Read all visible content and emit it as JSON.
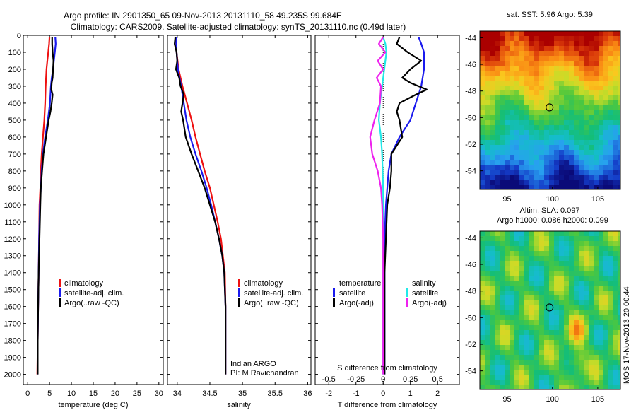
{
  "header": {
    "line1": "Argo profile: IN 2901350_65 09-Nov-2013 20131110_58 49.235S 99.684E",
    "line2": "Climatology: CARS2009. Satellite-adjusted climatology: synTS_20131110.nc (0.49d later)"
  },
  "colors": {
    "climatology": "#ee1111",
    "satellite": "#1a1aee",
    "argo": "#000000",
    "argo_salinity": "#ee22ee",
    "satellite_salinity": "#22e8e8"
  },
  "chart_data": [
    {
      "id": "temperature",
      "type": "line",
      "xlabel": "temperature (deg C)",
      "xlim": [
        -1,
        31
      ],
      "xticks": [
        0,
        5,
        10,
        15,
        20,
        25,
        30
      ],
      "ylim": [
        2060,
        0
      ],
      "yticks": [
        0,
        100,
        200,
        300,
        400,
        500,
        600,
        700,
        800,
        900,
        1000,
        1100,
        1200,
        1300,
        1400,
        1500,
        1600,
        1700,
        1800,
        1900,
        2000
      ],
      "legend": [
        "climatology",
        "satellite-adj. clim.",
        "Argo(..raw -QC)"
      ],
      "series": [
        {
          "name": "climatology",
          "color": "#ee1111",
          "points": [
            [
              5.0,
              10
            ],
            [
              4.9,
              50
            ],
            [
              4.7,
              100
            ],
            [
              4.5,
              150
            ],
            [
              4.3,
              200
            ],
            [
              4.1,
              300
            ],
            [
              4.0,
              400
            ],
            [
              3.8,
              500
            ],
            [
              3.5,
              600
            ],
            [
              3.2,
              700
            ],
            [
              3.0,
              800
            ],
            [
              2.9,
              900
            ],
            [
              2.7,
              1000
            ],
            [
              2.6,
              1200
            ],
            [
              2.5,
              1400
            ],
            [
              2.4,
              1600
            ],
            [
              2.3,
              1800
            ],
            [
              2.2,
              2000
            ]
          ]
        },
        {
          "name": "satellite-adj. clim.",
          "color": "#1a1aee",
          "points": [
            [
              6.3,
              10
            ],
            [
              6.4,
              50
            ],
            [
              6.2,
              100
            ],
            [
              6.0,
              150
            ],
            [
              5.8,
              200
            ],
            [
              5.5,
              250
            ],
            [
              5.3,
              300
            ],
            [
              5.1,
              400
            ],
            [
              4.6,
              500
            ],
            [
              4.0,
              600
            ],
            [
              3.5,
              700
            ],
            [
              3.2,
              800
            ],
            [
              3.0,
              900
            ],
            [
              2.8,
              1000
            ],
            [
              2.6,
              1200
            ],
            [
              2.5,
              1400
            ],
            [
              2.4,
              1600
            ],
            [
              2.3,
              1800
            ],
            [
              2.3,
              2000
            ]
          ]
        },
        {
          "name": "Argo(..raw -QC)",
          "color": "#000000",
          "points": [
            [
              5.6,
              10
            ],
            [
              5.6,
              50
            ],
            [
              5.7,
              100
            ],
            [
              5.9,
              150
            ],
            [
              5.8,
              200
            ],
            [
              5.7,
              250
            ],
            [
              5.5,
              280
            ],
            [
              5.4,
              320
            ],
            [
              5.7,
              350
            ],
            [
              5.5,
              400
            ],
            [
              5.2,
              450
            ],
            [
              4.8,
              500
            ],
            [
              4.2,
              600
            ],
            [
              3.6,
              700
            ],
            [
              3.3,
              800
            ],
            [
              3.0,
              900
            ],
            [
              2.9,
              1000
            ],
            [
              2.7,
              1200
            ],
            [
              2.5,
              1400
            ],
            [
              2.4,
              1600
            ],
            [
              2.3,
              1800
            ],
            [
              2.3,
              2000
            ]
          ]
        }
      ]
    },
    {
      "id": "salinity",
      "type": "line",
      "xlabel": "salinity",
      "xlim": [
        33.85,
        36.05
      ],
      "xticks": [
        34,
        34.5,
        35,
        35.5,
        36
      ],
      "ylim": [
        2060,
        0
      ],
      "legend": [
        "climatology",
        "satellite-adj. clim.",
        "Argo(..raw -QC)"
      ],
      "annotation_line1": "Indian ARGO",
      "annotation_line2": "PI: M Ravichandran",
      "series": [
        {
          "name": "climatology",
          "color": "#ee1111",
          "points": [
            [
              33.98,
              10
            ],
            [
              33.99,
              100
            ],
            [
              34.02,
              200
            ],
            [
              34.08,
              300
            ],
            [
              34.15,
              400
            ],
            [
              34.22,
              500
            ],
            [
              34.28,
              600
            ],
            [
              34.35,
              700
            ],
            [
              34.42,
              800
            ],
            [
              34.5,
              900
            ],
            [
              34.56,
              1000
            ],
            [
              34.62,
              1100
            ],
            [
              34.67,
              1200
            ],
            [
              34.7,
              1300
            ],
            [
              34.73,
              1400
            ],
            [
              34.74,
              1600
            ],
            [
              34.74,
              1800
            ],
            [
              34.74,
              2000
            ]
          ]
        },
        {
          "name": "satellite-adj. clim.",
          "color": "#1a1aee",
          "points": [
            [
              33.98,
              10
            ],
            [
              33.99,
              100
            ],
            [
              34.01,
              200
            ],
            [
              34.06,
              300
            ],
            [
              34.1,
              400
            ],
            [
              34.14,
              500
            ],
            [
              34.2,
              600
            ],
            [
              34.28,
              700
            ],
            [
              34.37,
              800
            ],
            [
              34.45,
              900
            ],
            [
              34.52,
              1000
            ],
            [
              34.58,
              1100
            ],
            [
              34.64,
              1200
            ],
            [
              34.69,
              1300
            ],
            [
              34.72,
              1400
            ],
            [
              34.74,
              1600
            ],
            [
              34.74,
              1800
            ],
            [
              34.74,
              2000
            ]
          ]
        },
        {
          "name": "Argo(..raw -QC)",
          "color": "#000000",
          "points": [
            [
              33.97,
              10
            ],
            [
              33.96,
              50
            ],
            [
              33.99,
              100
            ],
            [
              34.0,
              150
            ],
            [
              33.98,
              200
            ],
            [
              34.03,
              250
            ],
            [
              34.05,
              300
            ],
            [
              34.1,
              350
            ],
            [
              34.08,
              400
            ],
            [
              34.06,
              450
            ],
            [
              34.09,
              500
            ],
            [
              34.13,
              600
            ],
            [
              34.22,
              700
            ],
            [
              34.32,
              800
            ],
            [
              34.42,
              900
            ],
            [
              34.5,
              1000
            ],
            [
              34.58,
              1100
            ],
            [
              34.64,
              1200
            ],
            [
              34.69,
              1300
            ],
            [
              34.72,
              1400
            ],
            [
              34.74,
              1600
            ],
            [
              34.74,
              1800
            ],
            [
              34.74,
              2000
            ]
          ]
        }
      ]
    },
    {
      "id": "differences",
      "type": "line",
      "xlabel": "T difference from climatology",
      "xlabel_top": "S difference from climatology",
      "xlim": [
        -2.5,
        2.8
      ],
      "xticks": [
        -2,
        -1,
        0,
        1,
        2
      ],
      "xticks_top": [
        -0.5,
        -0.25,
        0,
        0.25,
        0.5
      ],
      "xticks_top_labels": [
        "-0.5",
        "-0.25",
        "0",
        "0.25",
        "0.5"
      ],
      "ylim": [
        2060,
        0
      ],
      "legend_temperature_title": "temperature",
      "legend_salinity_title": "salinity",
      "legend": [
        "satellite",
        "Argo(-adj)",
        "satellite",
        "Argo(-adj)"
      ],
      "series": [
        {
          "name": "satellite",
          "color": "#1a1aee",
          "points": [
            [
              1.3,
              10
            ],
            [
              1.4,
              50
            ],
            [
              1.5,
              100
            ],
            [
              1.5,
              200
            ],
            [
              1.4,
              300
            ],
            [
              1.2,
              400
            ],
            [
              1.0,
              500
            ],
            [
              0.6,
              600
            ],
            [
              0.3,
              700
            ],
            [
              0.2,
              800
            ],
            [
              0.15,
              900
            ],
            [
              0.1,
              1000
            ],
            [
              0.05,
              1200
            ],
            [
              0.05,
              1400
            ],
            [
              0.05,
              1600
            ],
            [
              0.05,
              1800
            ],
            [
              0.05,
              2000
            ]
          ]
        },
        {
          "name": "Argo(-adj)",
          "color": "#000000",
          "points": [
            [
              0.6,
              10
            ],
            [
              0.5,
              50
            ],
            [
              0.9,
              100
            ],
            [
              1.4,
              150
            ],
            [
              1.0,
              200
            ],
            [
              0.7,
              250
            ],
            [
              1.0,
              280
            ],
            [
              1.6,
              320
            ],
            [
              1.2,
              350
            ],
            [
              0.6,
              400
            ],
            [
              0.5,
              450
            ],
            [
              0.6,
              500
            ],
            [
              0.7,
              600
            ],
            [
              0.3,
              700
            ],
            [
              0.3,
              800
            ],
            [
              0.25,
              900
            ],
            [
              0.15,
              1000
            ],
            [
              0.1,
              1200
            ],
            [
              0.05,
              1400
            ],
            [
              0.05,
              1600
            ],
            [
              0.05,
              1800
            ],
            [
              0.05,
              2000
            ]
          ]
        },
        {
          "name": "satellite",
          "color": "#22e8e8",
          "points": [
            [
              0.0,
              10
            ],
            [
              0.02,
              50
            ],
            [
              0.03,
              100
            ],
            [
              0.01,
              200
            ],
            [
              -0.01,
              300
            ],
            [
              -0.03,
              400
            ],
            [
              -0.04,
              500
            ],
            [
              -0.02,
              600
            ],
            [
              -0.01,
              700
            ],
            [
              0.0,
              900
            ],
            [
              0.0,
              1200
            ],
            [
              0.0,
              1600
            ],
            [
              0.0,
              2000
            ]
          ]
        },
        {
          "name": "Argo(-adj)",
          "color": "#ee22ee",
          "points": [
            [
              0.0,
              10
            ],
            [
              -0.04,
              50
            ],
            [
              0.02,
              100
            ],
            [
              -0.05,
              150
            ],
            [
              0.0,
              200
            ],
            [
              -0.06,
              250
            ],
            [
              -0.02,
              300
            ],
            [
              -0.03,
              400
            ],
            [
              -0.08,
              500
            ],
            [
              -0.12,
              600
            ],
            [
              -0.1,
              700
            ],
            [
              -0.05,
              800
            ],
            [
              -0.02,
              900
            ],
            [
              -0.01,
              1000
            ],
            [
              0.0,
              1200
            ],
            [
              0.0,
              1600
            ],
            [
              0.0,
              2000
            ]
          ]
        }
      ]
    },
    {
      "id": "sst-map",
      "type": "heatmap",
      "title": "sat. SST: 5.96  Argo: 5.39",
      "xlim": [
        92,
        107.5
      ],
      "ylim": [
        -55.4,
        -43.5
      ],
      "xticks": [
        95,
        100,
        105
      ],
      "yticks": [
        -44,
        -46,
        -48,
        -50,
        -52,
        -54
      ],
      "profile_marker": [
        99.684,
        -49.235
      ]
    },
    {
      "id": "sla-map",
      "type": "heatmap",
      "title_line1": "Altim. SLA: 0.097",
      "title_line2": "Argo h1000: 0.086 h2000: 0.099",
      "side_label": "IMOS 17-Nov-2013 20:00:44",
      "xlim": [
        92,
        107.5
      ],
      "ylim": [
        -55.4,
        -43.5
      ],
      "xticks": [
        95,
        100,
        105
      ],
      "yticks": [
        -44,
        -46,
        -48,
        -50,
        -52,
        -54
      ],
      "profile_marker": [
        99.684,
        -49.235
      ]
    }
  ]
}
